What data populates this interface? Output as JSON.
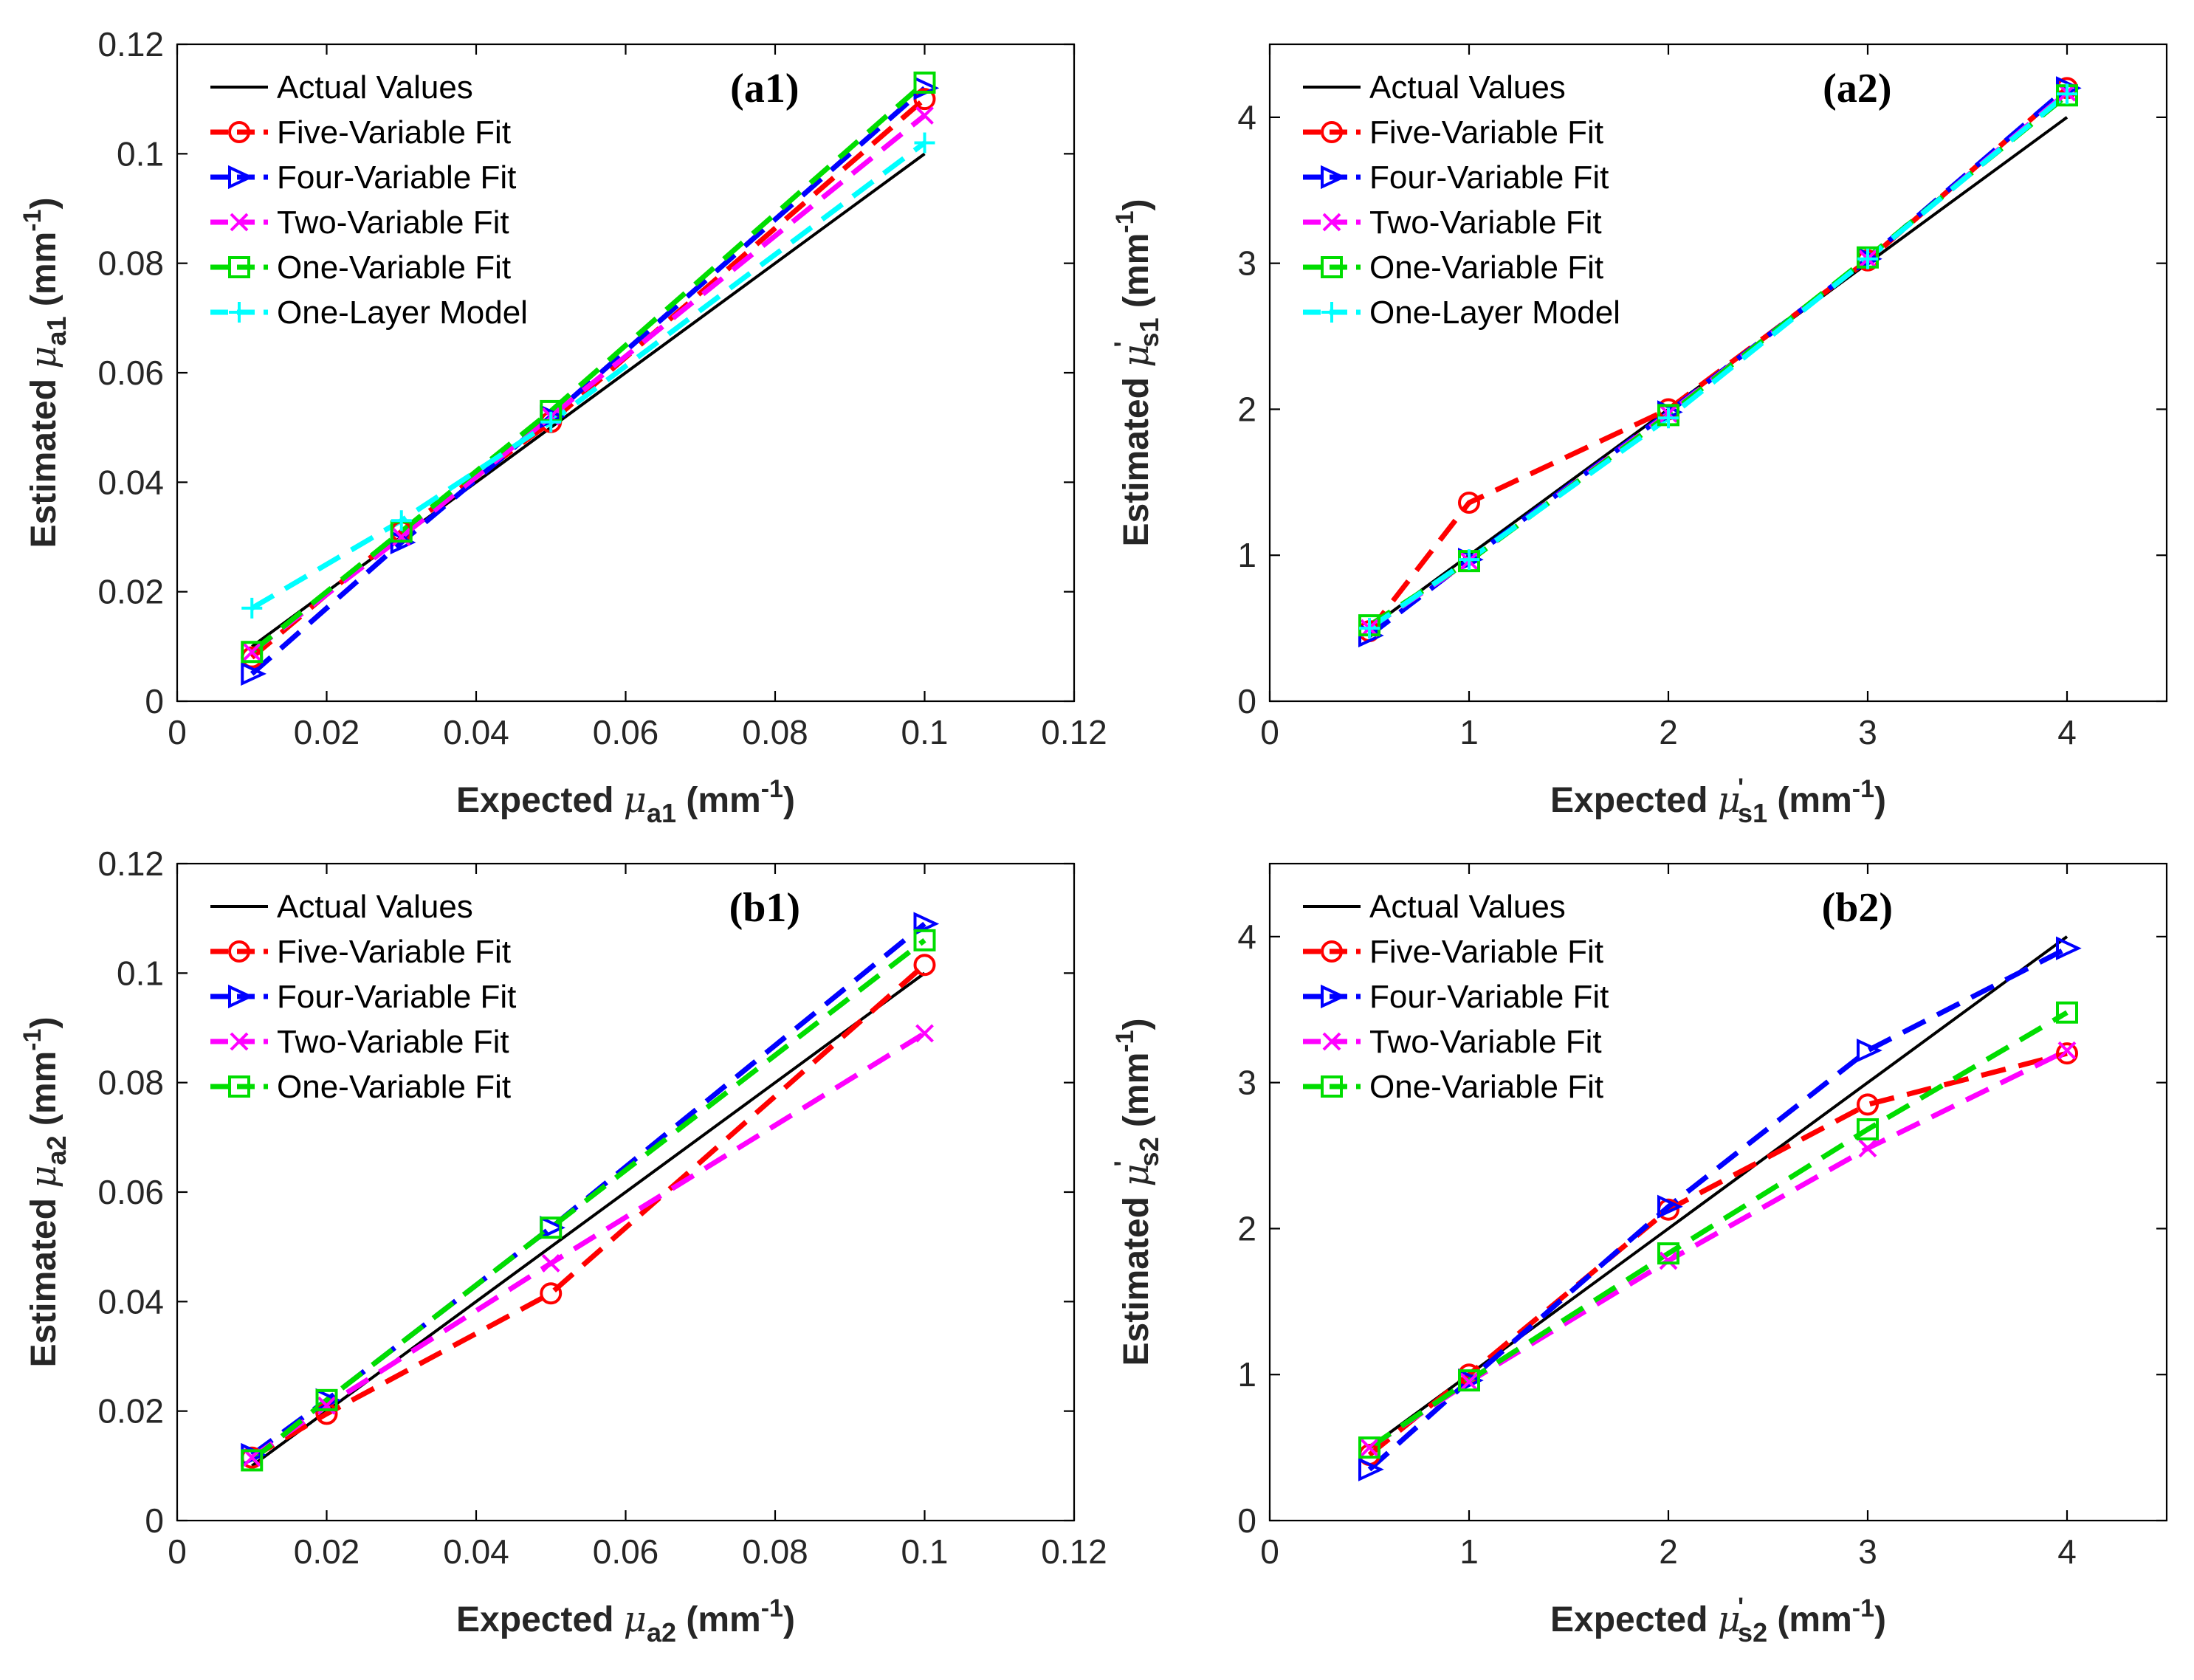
{
  "figure": {
    "series_styles": {
      "Actual Values": {
        "color": "#000000",
        "marker": "none",
        "dash": "solid"
      },
      "Five-Variable Fit": {
        "color": "#ff0000",
        "marker": "circle",
        "dash": "dashed"
      },
      "Four-Variable Fit": {
        "color": "#0000ff",
        "marker": "triangle",
        "dash": "dashed"
      },
      "Two-Variable Fit": {
        "color": "#ff00ff",
        "marker": "x",
        "dash": "dashed"
      },
      "One-Variable Fit": {
        "color": "#00dd00",
        "marker": "square",
        "dash": "dashed"
      },
      "One-Layer Model": {
        "color": "#00ffff",
        "marker": "plus",
        "dash": "dashed"
      }
    }
  },
  "chart_data": [
    {
      "id": "a1",
      "type": "line",
      "tag": "(a1)",
      "xlabel": {
        "prefix": "Expected ",
        "greek": "μ",
        "sub": "a1",
        "sup": "",
        "suffix": " (mm",
        "unit_sup": "-1",
        "close": ")"
      },
      "ylabel": {
        "prefix": "Estimated ",
        "greek": "μ",
        "sub": "a1",
        "sup": "",
        "suffix": " (mm",
        "unit_sup": "-1",
        "close": ")"
      },
      "xlim": [
        0,
        0.12
      ],
      "ylim": [
        0,
        0.12
      ],
      "xticks": [
        0,
        0.02,
        0.04,
        0.06,
        0.08,
        0.1,
        0.12
      ],
      "yticks": [
        0,
        0.02,
        0.04,
        0.06,
        0.08,
        0.1,
        0.12
      ],
      "xticklabels": [
        "0",
        "0.02",
        "0.04",
        "0.06",
        "0.08",
        "0.1",
        "0.12"
      ],
      "yticklabels": [
        "0",
        "0.02",
        "0.04",
        "0.06",
        "0.08",
        "0.1",
        "0.12"
      ],
      "x": [
        0.01,
        0.03,
        0.05,
        0.1
      ],
      "series": [
        {
          "name": "Actual Values",
          "values": [
            0.01,
            0.03,
            0.05,
            0.1
          ]
        },
        {
          "name": "Five-Variable Fit",
          "values": [
            0.008,
            0.031,
            0.051,
            0.11
          ]
        },
        {
          "name": "Four-Variable Fit",
          "values": [
            0.005,
            0.029,
            0.052,
            0.112
          ]
        },
        {
          "name": "Two-Variable Fit",
          "values": [
            0.009,
            0.03,
            0.052,
            0.107
          ]
        },
        {
          "name": "One-Variable Fit",
          "values": [
            0.009,
            0.031,
            0.053,
            0.113
          ]
        },
        {
          "name": "One-Layer Model",
          "values": [
            0.017,
            0.033,
            0.051,
            0.102
          ]
        }
      ]
    },
    {
      "id": "a2",
      "type": "line",
      "tag": "(a2)",
      "xlabel": {
        "prefix": "Expected ",
        "greek": "μ",
        "sub": "s1",
        "sup": "'",
        "suffix": " (mm",
        "unit_sup": "-1",
        "close": ")"
      },
      "ylabel": {
        "prefix": "Estimated ",
        "greek": "μ",
        "sub": "s1",
        "sup": "'",
        "suffix": " (mm",
        "unit_sup": "-1",
        "close": ")"
      },
      "xlim": [
        0,
        4.5
      ],
      "ylim": [
        0,
        4.5
      ],
      "xticks": [
        0,
        1,
        2,
        3,
        4
      ],
      "yticks": [
        0,
        1,
        2,
        3,
        4
      ],
      "xticklabels": [
        "0",
        "1",
        "2",
        "3",
        "4"
      ],
      "yticklabels": [
        "0",
        "1",
        "2",
        "3",
        "4"
      ],
      "x": [
        0.5,
        1,
        2,
        3,
        4
      ],
      "series": [
        {
          "name": "Actual Values",
          "values": [
            0.5,
            1,
            2,
            3,
            4
          ]
        },
        {
          "name": "Five-Variable Fit",
          "values": [
            0.48,
            1.36,
            2.0,
            3.02,
            4.2
          ]
        },
        {
          "name": "Four-Variable Fit",
          "values": [
            0.45,
            0.97,
            1.98,
            3.03,
            4.2
          ]
        },
        {
          "name": "Two-Variable Fit",
          "values": [
            0.5,
            0.96,
            1.97,
            3.03,
            4.17
          ]
        },
        {
          "name": "One-Variable Fit",
          "values": [
            0.52,
            0.96,
            1.96,
            3.04,
            4.15
          ]
        },
        {
          "name": "One-Layer Model",
          "values": [
            0.5,
            0.97,
            1.94,
            3.03,
            4.16
          ]
        }
      ]
    },
    {
      "id": "b1",
      "type": "line",
      "tag": "(b1)",
      "xlabel": {
        "prefix": "Expected ",
        "greek": "μ",
        "sub": "a2",
        "sup": "",
        "suffix": " (mm",
        "unit_sup": "-1",
        "close": ")"
      },
      "ylabel": {
        "prefix": "Estimated ",
        "greek": "μ",
        "sub": "a2",
        "sup": "",
        "suffix": " (mm",
        "unit_sup": "-1",
        "close": ")"
      },
      "xlim": [
        0,
        0.12
      ],
      "ylim": [
        0,
        0.12
      ],
      "xticks": [
        0,
        0.02,
        0.04,
        0.06,
        0.08,
        0.1,
        0.12
      ],
      "yticks": [
        0,
        0.02,
        0.04,
        0.06,
        0.08,
        0.1,
        0.12
      ],
      "xticklabels": [
        "0",
        "0.02",
        "0.04",
        "0.06",
        "0.08",
        "0.1",
        "0.12"
      ],
      "yticklabels": [
        "0",
        "0.02",
        "0.04",
        "0.06",
        "0.08",
        "0.1",
        "0.12"
      ],
      "x": [
        0.01,
        0.02,
        0.05,
        0.1
      ],
      "series": [
        {
          "name": "Actual Values",
          "values": [
            0.01,
            0.02,
            0.05,
            0.1
          ]
        },
        {
          "name": "Five-Variable Fit",
          "values": [
            0.0115,
            0.0195,
            0.0415,
            0.1015
          ]
        },
        {
          "name": "Four-Variable Fit",
          "values": [
            0.012,
            0.022,
            0.0535,
            0.109
          ]
        },
        {
          "name": "Two-Variable Fit",
          "values": [
            0.0115,
            0.021,
            0.047,
            0.089
          ]
        },
        {
          "name": "One-Variable Fit",
          "values": [
            0.011,
            0.022,
            0.0535,
            0.106
          ]
        }
      ]
    },
    {
      "id": "b2",
      "type": "line",
      "tag": "(b2)",
      "xlabel": {
        "prefix": "Expected ",
        "greek": "μ",
        "sub": "s2",
        "sup": "'",
        "suffix": " (mm",
        "unit_sup": "-1",
        "close": ")"
      },
      "ylabel": {
        "prefix": "Estimated ",
        "greek": "μ",
        "sub": "s2",
        "sup": "'",
        "suffix": " (mm",
        "unit_sup": "-1",
        "close": ")"
      },
      "xlim": [
        0,
        4.5
      ],
      "ylim": [
        0,
        4.5
      ],
      "xticks": [
        0,
        1,
        2,
        3,
        4
      ],
      "yticks": [
        0,
        1,
        2,
        3,
        4
      ],
      "xticklabels": [
        "0",
        "1",
        "2",
        "3",
        "4"
      ],
      "yticklabels": [
        "0",
        "1",
        "2",
        "3",
        "4"
      ],
      "x": [
        0.5,
        1,
        2,
        3,
        4
      ],
      "series": [
        {
          "name": "Actual Values",
          "values": [
            0.5,
            1,
            2,
            3,
            4
          ]
        },
        {
          "name": "Five-Variable Fit",
          "values": [
            0.45,
            1.0,
            2.13,
            2.85,
            3.2
          ]
        },
        {
          "name": "Four-Variable Fit",
          "values": [
            0.35,
            0.96,
            2.15,
            3.22,
            3.92
          ]
        },
        {
          "name": "Two-Variable Fit",
          "values": [
            0.5,
            0.95,
            1.78,
            2.55,
            3.22
          ]
        },
        {
          "name": "One-Variable Fit",
          "values": [
            0.5,
            0.96,
            1.83,
            2.68,
            3.48
          ]
        }
      ]
    }
  ]
}
